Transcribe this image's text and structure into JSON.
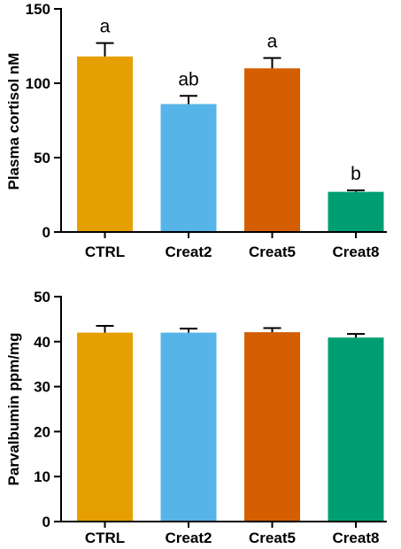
{
  "chart_data": [
    {
      "type": "bar",
      "ylabel": "Plasma cortisol nM",
      "categories": [
        "CTRL",
        "Creat2",
        "Creat5",
        "Creat8"
      ],
      "values": [
        118,
        86,
        110,
        27
      ],
      "errors": [
        9,
        5.5,
        7,
        1
      ],
      "significance": [
        "a",
        "ab",
        "a",
        "b"
      ],
      "ylim": [
        0,
        150
      ],
      "yticks": [
        0,
        50,
        100,
        150
      ],
      "colors": [
        "#E69F00",
        "#56B4E9",
        "#D55E00",
        "#009E73"
      ],
      "grid": false
    },
    {
      "type": "bar",
      "ylabel": "Parvalbumin ppm/mg",
      "categories": [
        "CTRL",
        "Creat2",
        "Creat5",
        "Creat8"
      ],
      "values": [
        42,
        42,
        42.1,
        40.9
      ],
      "errors": [
        1.5,
        0.9,
        0.9,
        0.8
      ],
      "ylim": [
        0,
        50
      ],
      "yticks": [
        0,
        10,
        20,
        30,
        40,
        50
      ],
      "colors": [
        "#E69F00",
        "#56B4E9",
        "#D55E00",
        "#009E73"
      ],
      "grid": false
    }
  ]
}
